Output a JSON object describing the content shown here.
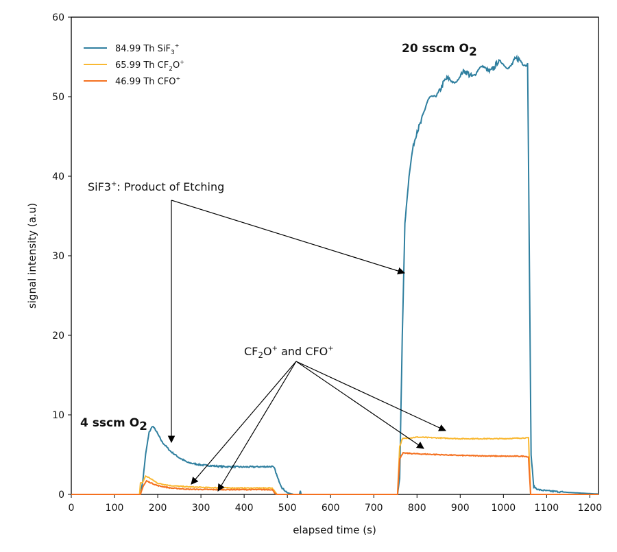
{
  "chart_data": {
    "type": "line",
    "title": "",
    "xlabel": "elapsed time (s)",
    "ylabel": "signal intensity (a.u)",
    "xlim": [
      0,
      1220
    ],
    "ylim": [
      0,
      60
    ],
    "xticks": [
      0,
      100,
      200,
      300,
      400,
      500,
      600,
      700,
      800,
      900,
      1000,
      1100,
      1200
    ],
    "yticks": [
      0,
      10,
      20,
      30,
      40,
      50,
      60
    ],
    "grid": false,
    "legend_placement": "top-left",
    "series": [
      {
        "name": "84.99 Th SiF3+",
        "label_main": "84.99 Th SiF",
        "label_sub": "3",
        "label_sup": "+",
        "color": "#2f7f9f",
        "points": [
          [
            0,
            0
          ],
          [
            160,
            0
          ],
          [
            165,
            1.5
          ],
          [
            172,
            5
          ],
          [
            180,
            7.8
          ],
          [
            188,
            8.6
          ],
          [
            195,
            8.1
          ],
          [
            210,
            6.6
          ],
          [
            230,
            5.4
          ],
          [
            250,
            4.6
          ],
          [
            270,
            4.0
          ],
          [
            300,
            3.7
          ],
          [
            350,
            3.5
          ],
          [
            400,
            3.45
          ],
          [
            465,
            3.5
          ],
          [
            470,
            3.3
          ],
          [
            478,
            2.0
          ],
          [
            488,
            0.8
          ],
          [
            500,
            0.2
          ],
          [
            515,
            0
          ],
          [
            528,
            0
          ],
          [
            530,
            0.5
          ],
          [
            532,
            0
          ],
          [
            700,
            0
          ],
          [
            755,
            0
          ],
          [
            760,
            2
          ],
          [
            766,
            20
          ],
          [
            772,
            34
          ],
          [
            780,
            39
          ],
          [
            790,
            43
          ],
          [
            800,
            46
          ],
          [
            815,
            48
          ],
          [
            830,
            49.5
          ],
          [
            850,
            51
          ],
          [
            875,
            52
          ],
          [
            900,
            52.5
          ],
          [
            925,
            53
          ],
          [
            950,
            53.3
          ],
          [
            975,
            53.8
          ],
          [
            1000,
            54
          ],
          [
            1025,
            54.2
          ],
          [
            1050,
            54.5
          ],
          [
            1056,
            54.3
          ],
          [
            1060,
            30
          ],
          [
            1064,
            5
          ],
          [
            1070,
            1.0
          ],
          [
            1080,
            0.6
          ],
          [
            1100,
            0.45
          ],
          [
            1150,
            0.25
          ],
          [
            1200,
            0.1
          ],
          [
            1220,
            0.05
          ]
        ]
      },
      {
        "name": "65.99 Th CF2O+",
        "label_main": "65.99 Th CF",
        "label_sub": "2",
        "label_sup": "O+",
        "color": "#f9b832",
        "points": [
          [
            0,
            0
          ],
          [
            158,
            0
          ],
          [
            160,
            1.4
          ],
          [
            165,
            1.5
          ],
          [
            172,
            2.3
          ],
          [
            180,
            2.1
          ],
          [
            200,
            1.4
          ],
          [
            230,
            1.1
          ],
          [
            270,
            0.95
          ],
          [
            320,
            0.85
          ],
          [
            400,
            0.8
          ],
          [
            465,
            0.8
          ],
          [
            472,
            0.3
          ],
          [
            476,
            0
          ],
          [
            755,
            0
          ],
          [
            760,
            6
          ],
          [
            766,
            7.0
          ],
          [
            800,
            7.2
          ],
          [
            900,
            7.0
          ],
          [
            1000,
            7.0
          ],
          [
            1050,
            7.1
          ],
          [
            1058,
            7.1
          ],
          [
            1063,
            0
          ],
          [
            1220,
            0
          ]
        ]
      },
      {
        "name": "46.99 Th CFO+",
        "label_main": "46.99 Th CFO",
        "label_sub": "",
        "label_sup": "+",
        "color": "#f4701f",
        "points": [
          [
            0,
            0
          ],
          [
            160,
            0
          ],
          [
            166,
            1.0
          ],
          [
            174,
            1.7
          ],
          [
            182,
            1.5
          ],
          [
            200,
            1.1
          ],
          [
            230,
            0.8
          ],
          [
            270,
            0.65
          ],
          [
            330,
            0.6
          ],
          [
            465,
            0.6
          ],
          [
            470,
            0.2
          ],
          [
            475,
            0
          ],
          [
            755,
            0
          ],
          [
            760,
            4.5
          ],
          [
            768,
            5.2
          ],
          [
            800,
            5.1
          ],
          [
            900,
            4.9
          ],
          [
            1000,
            4.8
          ],
          [
            1050,
            4.8
          ],
          [
            1058,
            4.7
          ],
          [
            1063,
            0
          ],
          [
            1220,
            0
          ]
        ]
      }
    ],
    "annotations": {
      "etching_label_main": "SiF3",
      "etching_label_sup": "+",
      "etching_label_rest": ": Product of Etching",
      "cf_label_a": "CF",
      "cf_label_sub": "2",
      "cf_label_b": "O",
      "cf_label_sup": "+",
      "cf_label_c": " and CFO",
      "cf_label_sup2": "+",
      "low_o2_main": "4 sscm O",
      "low_o2_sub": "2",
      "high_o2_main": "20 sscm O",
      "high_o2_sub": "2"
    }
  }
}
